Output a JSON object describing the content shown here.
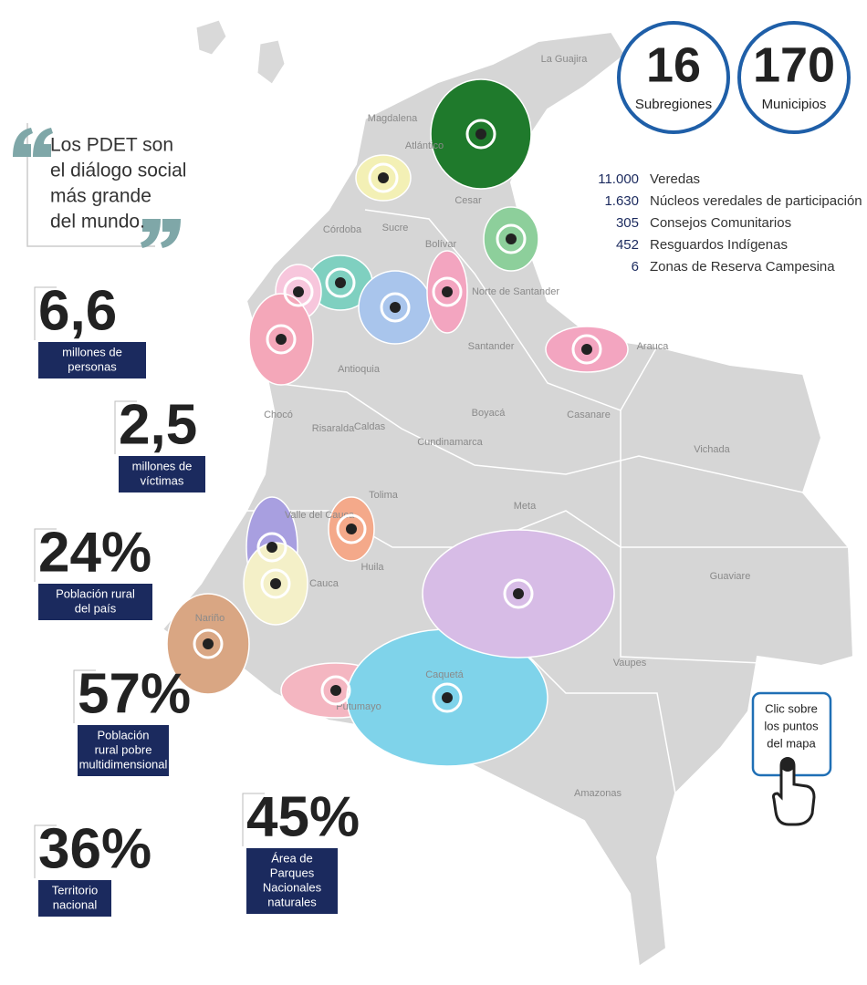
{
  "quote": [
    "Los PDET son",
    "el diálogo social",
    "más grande",
    "del mundo."
  ],
  "badges": [
    {
      "number": "16",
      "label": "Subregiones"
    },
    {
      "number": "170",
      "label": "Municipios"
    }
  ],
  "counts": [
    {
      "value": "11.000",
      "label": "Veredas"
    },
    {
      "value": "1.630",
      "label": "Núcleos veredales de participación"
    },
    {
      "value": "305",
      "label": "Consejos Comunitarios"
    },
    {
      "value": "452",
      "label": "Resguardos Indígenas"
    },
    {
      "value": "6",
      "label": "Zonas de Reserva Campesina"
    }
  ],
  "stats": [
    {
      "value": "6,6",
      "label": [
        "millones de",
        "personas"
      ]
    },
    {
      "value": "2,5",
      "label": [
        "millones de",
        "víctimas"
      ]
    },
    {
      "value": "24%",
      "label": [
        "Población rural",
        "del país"
      ]
    },
    {
      "value": "57%",
      "label": [
        "Población",
        "rural pobre",
        "multidimensional"
      ]
    },
    {
      "value": "36%",
      "label": [
        "Territorio",
        "nacional"
      ]
    },
    {
      "value": "45%",
      "label": [
        "Área de",
        "Parques",
        "Nacionales",
        "naturales"
      ]
    }
  ],
  "departments": [
    "La Guajira",
    "Magdalena",
    "Atlántico",
    "Cesar",
    "Córdoba",
    "Sucre",
    "Bolívar",
    "Norte de Santander",
    "Antioquia",
    "Santander",
    "Arauca",
    "Boyacá",
    "Casanare",
    "Chocó",
    "Risaralda",
    "Caldas",
    "Cundinamarca",
    "Vichada",
    "Tolima",
    "Valle del Cauca",
    "Meta",
    "Cauca",
    "Huila",
    "Guaviare",
    "Nariño",
    "Caquetá",
    "Vaupes",
    "Putumayo",
    "Amazonas"
  ],
  "cta": [
    "Clic sobre",
    "los puntos",
    "del mapa"
  ]
}
